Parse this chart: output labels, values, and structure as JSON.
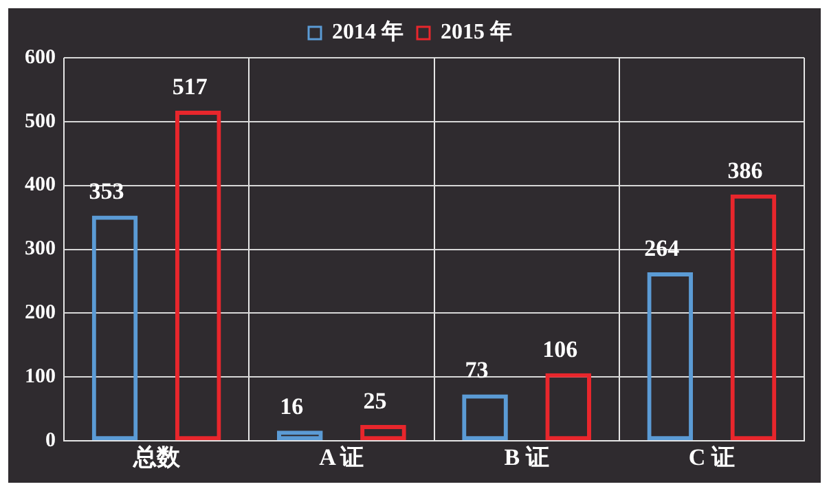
{
  "chart_data": {
    "type": "bar",
    "categories": [
      "总数",
      "A 证",
      "B 证",
      "C 证"
    ],
    "series": [
      {
        "name": "2014 年",
        "color": "#5b9bd5",
        "values": [
          353,
          16,
          73,
          264
        ]
      },
      {
        "name": "2015 年",
        "color": "#e8262c",
        "values": [
          517,
          25,
          106,
          386
        ]
      }
    ],
    "ylim": [
      0,
      600
    ],
    "yticks": [
      0,
      100,
      200,
      300,
      400,
      500,
      600
    ],
    "grid": true,
    "legend": "top",
    "data_labels": true
  }
}
